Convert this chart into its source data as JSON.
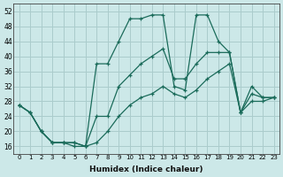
{
  "xlabel": "Humidex (Indice chaleur)",
  "background_color": "#cce8e8",
  "grid_color": "#aacccc",
  "line_color": "#1a6b5a",
  "xlim": [
    -0.5,
    23.5
  ],
  "ylim": [
    14,
    54
  ],
  "yticks": [
    16,
    20,
    24,
    28,
    32,
    36,
    40,
    44,
    48,
    52
  ],
  "xticks": [
    0,
    1,
    2,
    3,
    4,
    5,
    6,
    7,
    8,
    9,
    10,
    11,
    12,
    13,
    14,
    15,
    16,
    17,
    18,
    19,
    20,
    21,
    22,
    23
  ],
  "series": [
    [
      27,
      25,
      20,
      17,
      17,
      17,
      16,
      38,
      38,
      44,
      50,
      50,
      51,
      51,
      32,
      31,
      51,
      51,
      44,
      41,
      25,
      32,
      29,
      29
    ],
    [
      27,
      25,
      20,
      17,
      17,
      17,
      16,
      24,
      24,
      32,
      35,
      38,
      40,
      42,
      34,
      34,
      38,
      41,
      41,
      41,
      25,
      30,
      29,
      29
    ],
    [
      27,
      25,
      20,
      17,
      17,
      16,
      16,
      17,
      20,
      24,
      27,
      29,
      30,
      32,
      30,
      29,
      31,
      34,
      36,
      38,
      25,
      28,
      28,
      29
    ]
  ]
}
